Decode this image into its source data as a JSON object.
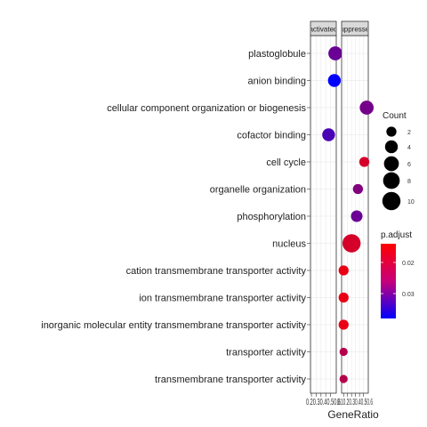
{
  "chart_data": {
    "type": "scatter",
    "xlabel": "GeneRatio",
    "categories": [
      "plastoglobule",
      "anion binding",
      "cellular component organization or biogenesis",
      "cofactor binding",
      "cell cycle",
      "organelle organization",
      "phosphorylation",
      "nucleus",
      "cation transmembrane transporter activity",
      "ion transmembrane transporter activity",
      "inorganic molecular entity transmembrane transporter activity",
      "transporter activity",
      "transmembrane transporter activity"
    ],
    "panels": [
      {
        "strip_label": "activated",
        "x_tick_text": "0.20.30.40.50.6",
        "ticks": [
          0.2,
          0.3,
          0.4,
          0.5,
          0.6
        ],
        "xlim": [
          0.18,
          0.72
        ],
        "points": [
          {
            "term": "plastoglobule",
            "x": 0.7,
            "count": 5,
            "p_adjust": 0.028
          },
          {
            "term": "anion binding",
            "x": 0.68,
            "count": 4,
            "p_adjust": 0.038
          },
          {
            "term": "cofactor binding",
            "x": 0.56,
            "count": 4,
            "p_adjust": 0.031
          }
        ]
      },
      {
        "strip_label": "suppressed",
        "x_tick_text": "0.10.20.30.40.50.6",
        "ticks": [
          0.1,
          0.2,
          0.3,
          0.4,
          0.5,
          0.6
        ],
        "xlim": [
          0.05,
          0.72
        ],
        "points": [
          {
            "term": "cellular component organization or biogenesis",
            "x": 0.68,
            "count": 5,
            "p_adjust": 0.027
          },
          {
            "term": "cell cycle",
            "x": 0.62,
            "count": 2,
            "p_adjust": 0.018
          },
          {
            "term": "organelle organization",
            "x": 0.46,
            "count": 2,
            "p_adjust": 0.026
          },
          {
            "term": "phosphorylation",
            "x": 0.43,
            "count": 3,
            "p_adjust": 0.028
          },
          {
            "term": "nucleus",
            "x": 0.3,
            "count": 10,
            "p_adjust": 0.018
          },
          {
            "term": "cation transmembrane transporter activity",
            "x": 0.1,
            "count": 2,
            "p_adjust": 0.016
          },
          {
            "term": "ion transmembrane transporter activity",
            "x": 0.1,
            "count": 2,
            "p_adjust": 0.016
          },
          {
            "term": "inorganic molecular entity transmembrane transporter activity",
            "x": 0.1,
            "count": 2,
            "p_adjust": 0.016
          },
          {
            "term": "transporter activity",
            "x": 0.1,
            "count": 1,
            "p_adjust": 0.021
          },
          {
            "term": "transmembrane transporter activity",
            "x": 0.1,
            "count": 1,
            "p_adjust": 0.021
          }
        ]
      }
    ],
    "legend_size": {
      "title": "Count",
      "breaks": [
        2,
        4,
        6,
        8,
        10
      ],
      "labels": [
        "2",
        "4",
        "6",
        "8",
        "10"
      ]
    },
    "legend_color": {
      "title": "p.adjust",
      "low_color": "#ff0000",
      "high_color": "#0000ff",
      "range": [
        0.014,
        0.038
      ],
      "breaks": [
        0.02,
        0.03
      ],
      "labels": [
        "0.02",
        "0.03"
      ]
    },
    "grid": true,
    "legend_position": "right"
  }
}
